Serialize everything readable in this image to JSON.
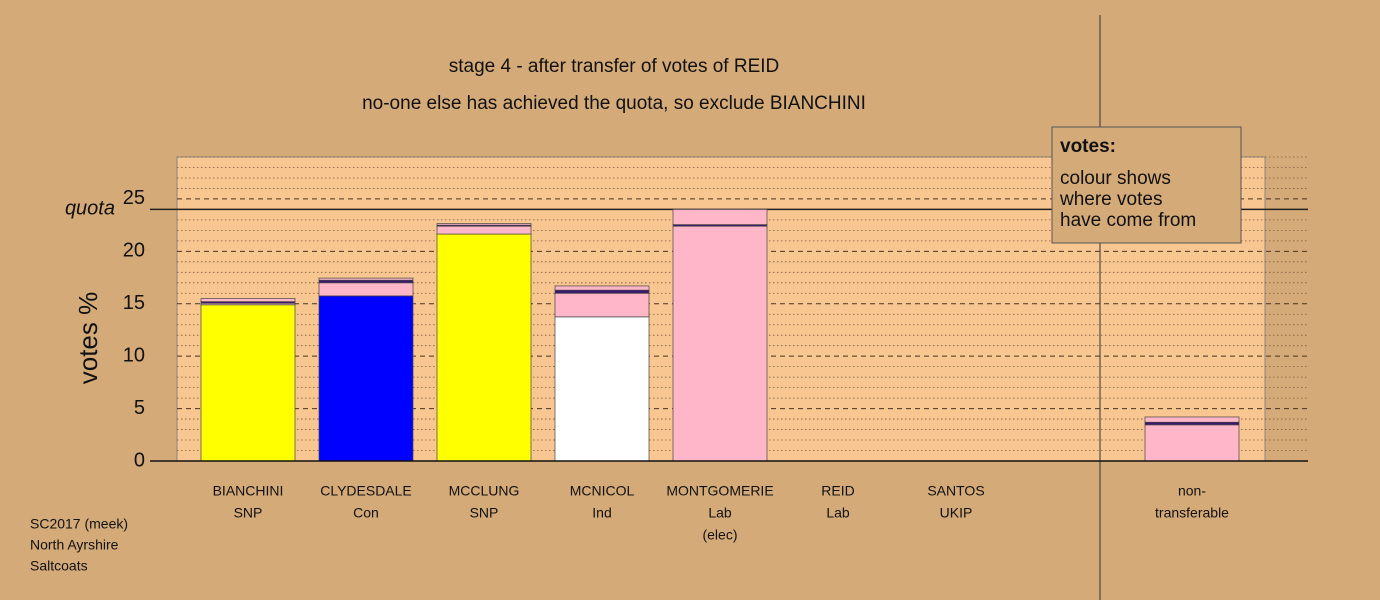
{
  "chart_data": {
    "type": "stacked-bar",
    "title": "stage 4 - after transfer of votes of REID",
    "subtitle": "no-one else has achieved the quota, so exclude BIANCHINI",
    "y_label": "votes %",
    "quota": 24,
    "quota_label": "quota",
    "categories": [
      [
        "BIANCHINI",
        "SNP"
      ],
      [
        "CLYDESDALE",
        "Con"
      ],
      [
        "MCCLUNG",
        "SNP"
      ],
      [
        "MCNICOL",
        "Ind"
      ],
      [
        "MONTGOMERIE",
        "Lab",
        "(elec)"
      ],
      [
        "REID",
        "Lab"
      ],
      [
        "SANTOS",
        "UKIP"
      ],
      [
        "non-",
        "transferable"
      ]
    ],
    "series": [
      {
        "colors": [
          "#ffff00",
          "#0000ff",
          "#ffff00",
          "#ffffff",
          "#ffb6c8",
          "#ffb6c8",
          "#a020f0",
          "#ffb6c8"
        ],
        "values": [
          14.9,
          15.75,
          21.65,
          13.75,
          22.4,
          0,
          0,
          3.45
        ]
      },
      {
        "color": "#ffb6c8",
        "values": [
          0.15,
          1.25,
          0.75,
          2.25,
          0,
          0,
          0,
          0
        ]
      },
      {
        "color": "#3a1a6e",
        "values": [
          0.15,
          0.25,
          0.1,
          0.3,
          0.15,
          0,
          0,
          0.25
        ]
      },
      {
        "color": "#ffb6c8",
        "values": [
          0.3,
          0.2,
          0.15,
          0.4,
          1.45,
          0,
          0,
          0.5
        ]
      }
    ],
    "ylim": [
      0,
      29
    ],
    "yticks": [
      0,
      5,
      10,
      15,
      20,
      25
    ],
    "minor_yticks": [
      1,
      2,
      3,
      4,
      6,
      7,
      8,
      9,
      11,
      12,
      13,
      14,
      16,
      17,
      18,
      19,
      21,
      22,
      23,
      24,
      26,
      27,
      28,
      29
    ],
    "legend": {
      "title": "votes:",
      "lines": [
        "colour shows",
        "where votes",
        "have come from"
      ]
    },
    "footer": [
      "SC2017 (meek)",
      "North Ayrshire",
      "Saltcoats"
    ]
  }
}
